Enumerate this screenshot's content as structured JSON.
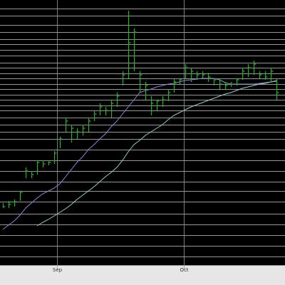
{
  "chart_data": {
    "type": "ohlc",
    "categories": [
      null,
      null,
      null,
      null,
      null,
      null,
      null,
      null,
      null,
      null,
      null,
      null,
      null,
      null,
      null,
      null,
      null,
      null,
      null,
      null,
      null,
      null,
      null,
      null,
      null,
      null,
      null,
      null,
      null,
      null,
      null,
      null,
      null,
      null,
      null,
      null,
      null,
      null,
      null,
      null,
      null,
      null,
      null,
      null,
      null,
      null,
      null,
      null,
      null
    ],
    "high": [
      87,
      90,
      92,
      104,
      137,
      132,
      147,
      147,
      147,
      160,
      180,
      207,
      197,
      192,
      197,
      207,
      217,
      227,
      222,
      232,
      242,
      272,
      357,
      332,
      272,
      257,
      237,
      232,
      237,
      247,
      262,
      262,
      282,
      277,
      272,
      272,
      270,
      262,
      262,
      257,
      257,
      262,
      277,
      282,
      287,
      272,
      272,
      277,
      262
    ],
    "low": [
      80,
      80,
      82,
      90,
      122,
      122,
      127,
      137,
      140,
      142,
      164,
      187,
      172,
      177,
      182,
      187,
      202,
      210,
      210,
      207,
      222,
      252,
      262,
      272,
      242,
      232,
      210,
      217,
      222,
      230,
      242,
      254,
      262,
      257,
      260,
      262,
      257,
      252,
      247,
      247,
      250,
      252,
      260,
      264,
      267,
      262,
      260,
      257,
      232
    ],
    "close": [
      82,
      85,
      89,
      102,
      132,
      127,
      144,
      142,
      144,
      157,
      177,
      202,
      192,
      187,
      192,
      202,
      212,
      222,
      217,
      227,
      237,
      267,
      312,
      327,
      267,
      252,
      227,
      230,
      232,
      242,
      257,
      260,
      277,
      272,
      267,
      267,
      264,
      260,
      254,
      252,
      254,
      260,
      272,
      277,
      282,
      267,
      264,
      272,
      242
    ],
    "color": "#22b522",
    "lines": [
      {
        "color": "#8a86d8",
        "values": [
          50,
          56,
          62,
          70,
          80,
          87,
          94,
          100,
          104,
          108,
          114,
          124,
          134,
          144,
          152,
          162,
          169,
          177,
          184,
          194,
          202,
          212,
          222,
          232,
          242,
          245,
          247,
          250,
          252,
          254,
          255,
          257,
          259,
          260,
          261,
          262,
          262,
          262,
          260,
          256,
          254,
          254,
          254,
          254,
          254,
          255,
          256,
          257,
          259
        ]
      },
      {
        "color": "#8fd0c8",
        "values": [
          null,
          null,
          null,
          null,
          null,
          null,
          55,
          60,
          64,
          69,
          74,
          79,
          85,
          92,
          98,
          104,
          110,
          117,
          124,
          130,
          137,
          147,
          159,
          169,
          175,
          182,
          187,
          192,
          197,
          204,
          210,
          214,
          218,
          222,
          225,
          228,
          231,
          234,
          237,
          240,
          242,
          245,
          248,
          250,
          252,
          254,
          255,
          257,
          258
        ]
      }
    ],
    "xlim": [
      -0.5,
      49.5
    ],
    "xticks": [
      {
        "value": 9.5,
        "label": "Sep"
      },
      {
        "value": 31.75,
        "label": "Oct"
      }
    ],
    "ylim": [
      0,
      372
    ],
    "ygrid": [
      360,
      350,
      337,
      327,
      317,
      310,
      302,
      294,
      284,
      277,
      269,
      262,
      254,
      247,
      239,
      232,
      224,
      217,
      207,
      197,
      187,
      177,
      162,
      147,
      132,
      117,
      104,
      89,
      72,
      57,
      42,
      27,
      12
    ],
    "grid": true
  }
}
